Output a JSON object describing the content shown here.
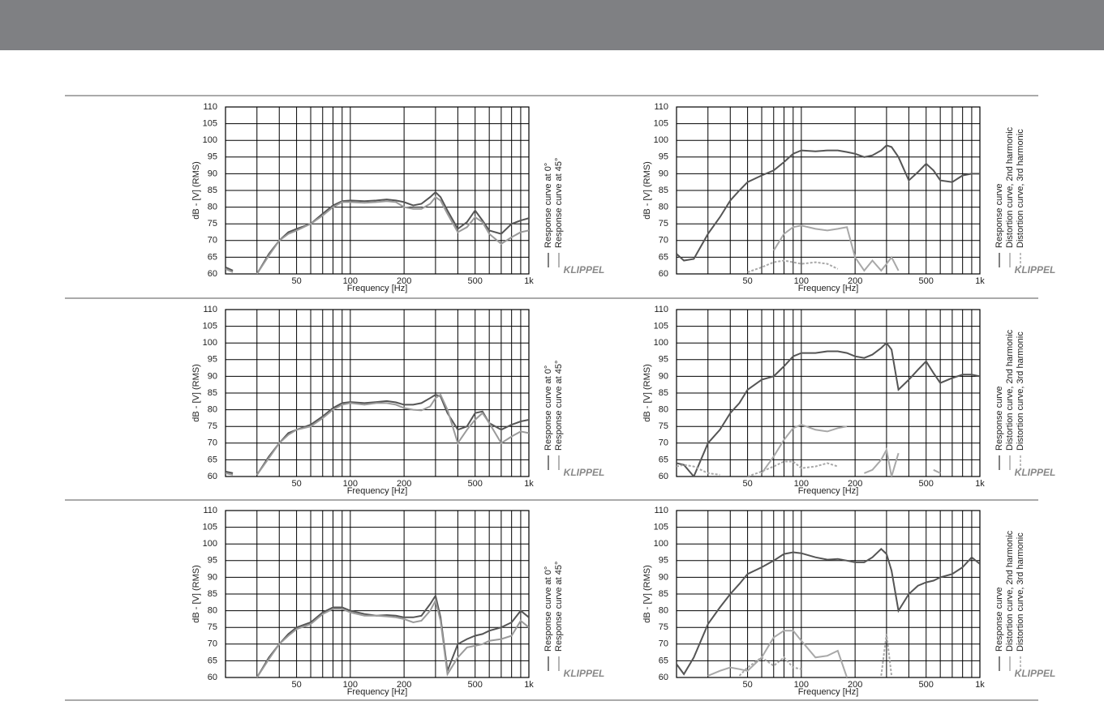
{
  "brand": "KLIPPEL",
  "chart_data": [
    {
      "type": "line",
      "xscale": "log",
      "xlim": [
        20,
        1000
      ],
      "ylim": [
        60,
        110
      ],
      "xlabel": "Frequency [Hz]",
      "ylabel": "dB - [V] (RMS)",
      "xticks": [
        50,
        100,
        200,
        500,
        {
          "value": 1000,
          "label": "1k"
        }
      ],
      "xminor": [
        30,
        40,
        60,
        70,
        80,
        90,
        300,
        400,
        600,
        700,
        800,
        900
      ],
      "yticks": [
        60,
        65,
        70,
        75,
        80,
        85,
        90,
        95,
        100,
        105,
        110
      ],
      "grid": true,
      "x": [
        20,
        22,
        25,
        30,
        35,
        40,
        45,
        50,
        60,
        70,
        80,
        90,
        100,
        120,
        140,
        160,
        180,
        200,
        225,
        250,
        280,
        300,
        320,
        350,
        400,
        450,
        500,
        550,
        600,
        700,
        800,
        900,
        1000
      ],
      "series": [
        {
          "name": "Response curve at 0°",
          "color": "#555555",
          "values": [
            62,
            61,
            null,
            60,
            66,
            70,
            72.5,
            73.5,
            75,
            78,
            80.5,
            81.8,
            82,
            81.8,
            82,
            82.3,
            82,
            81.5,
            80.5,
            81,
            83,
            84.5,
            83,
            79,
            73.5,
            75.5,
            79,
            76,
            73,
            72,
            75,
            76,
            76.7
          ]
        },
        {
          "name": "Response curve at 45°",
          "color": "#9a9a9a",
          "values": [
            61.5,
            60.5,
            null,
            60,
            65.5,
            70,
            72,
            73,
            75,
            77.5,
            80,
            81.5,
            81.5,
            81.3,
            81.5,
            81.8,
            81.5,
            80,
            79.5,
            79.5,
            81,
            83,
            82,
            78,
            72.5,
            74,
            77,
            75.5,
            72,
            69,
            71,
            72.5,
            73
          ]
        }
      ]
    },
    {
      "type": "line",
      "xscale": "log",
      "xlim": [
        20,
        1000
      ],
      "ylim": [
        60,
        110
      ],
      "xlabel": "Frequency [Hz]",
      "ylabel": "dB - [V] (RMS)",
      "xticks": [
        50,
        100,
        200,
        500,
        {
          "value": 1000,
          "label": "1k"
        }
      ],
      "xminor": [
        30,
        40,
        60,
        70,
        80,
        90,
        300,
        400,
        600,
        700,
        800,
        900
      ],
      "yticks": [
        60,
        65,
        70,
        75,
        80,
        85,
        90,
        95,
        100,
        105,
        110
      ],
      "grid": true,
      "x": [
        20,
        22,
        25,
        30,
        35,
        40,
        45,
        50,
        60,
        70,
        80,
        90,
        100,
        120,
        140,
        160,
        180,
        200,
        225,
        250,
        280,
        300,
        320,
        350,
        400,
        450,
        500,
        550,
        600,
        700,
        800,
        900,
        1000
      ],
      "series": [
        {
          "name": "Response curve",
          "color": "#555555",
          "values": [
            66,
            64,
            64.5,
            72,
            77,
            82,
            85,
            87.5,
            89.5,
            91,
            93.5,
            96,
            97,
            96.7,
            97,
            97,
            96.5,
            96,
            95,
            95.5,
            97,
            98.5,
            98,
            95,
            88,
            90.5,
            93,
            91,
            88,
            87.5,
            89.5,
            90,
            90
          ]
        },
        {
          "name": "Distortion curve, 2nd harmonic",
          "color": "#a8a8a8",
          "values": [
            null,
            null,
            null,
            null,
            null,
            null,
            null,
            null,
            null,
            67,
            72,
            74,
            74.5,
            73.5,
            73,
            73.5,
            74,
            65,
            61,
            64,
            61,
            63,
            65,
            61,
            null,
            null,
            null,
            null,
            null,
            null,
            null,
            null,
            null
          ]
        },
        {
          "name": "Distortion curve, 3rd harmonic",
          "color": "#a8a8a8",
          "dash": true,
          "values": [
            null,
            null,
            null,
            null,
            null,
            null,
            null,
            60.5,
            62,
            63.5,
            64,
            63.5,
            63,
            63.5,
            63,
            61.5,
            null,
            null,
            null,
            null,
            null,
            null,
            null,
            null,
            null,
            null,
            null,
            null,
            null,
            null,
            null,
            null,
            null
          ]
        }
      ]
    },
    {
      "type": "line",
      "xscale": "log",
      "xlim": [
        20,
        1000
      ],
      "ylim": [
        60,
        110
      ],
      "xlabel": "Frequency [Hz]",
      "ylabel": "dB - [V] (RMS)",
      "xticks": [
        50,
        100,
        200,
        500,
        {
          "value": 1000,
          "label": "1k"
        }
      ],
      "xminor": [
        30,
        40,
        60,
        70,
        80,
        90,
        300,
        400,
        600,
        700,
        800,
        900
      ],
      "yticks": [
        60,
        65,
        70,
        75,
        80,
        85,
        90,
        95,
        100,
        105,
        110
      ],
      "grid": true,
      "x": [
        20,
        22,
        25,
        30,
        35,
        40,
        45,
        50,
        60,
        70,
        80,
        90,
        100,
        120,
        140,
        160,
        180,
        200,
        225,
        250,
        280,
        300,
        320,
        350,
        400,
        450,
        500,
        550,
        600,
        700,
        800,
        900,
        1000
      ],
      "series": [
        {
          "name": "Response curve at 0°",
          "color": "#555555",
          "values": [
            61.5,
            61,
            null,
            60.5,
            66,
            70,
            73,
            74,
            75.5,
            78,
            80.5,
            82,
            82.3,
            82,
            82.3,
            82.6,
            82.2,
            81.5,
            81.5,
            82,
            83.5,
            84.5,
            84,
            79,
            74,
            75,
            79,
            79.5,
            76,
            74,
            75.5,
            76.5,
            77
          ]
        },
        {
          "name": "Response curve at 45°",
          "color": "#9a9a9a",
          "values": [
            61,
            60.5,
            null,
            60.5,
            65.5,
            70,
            72.5,
            74,
            75,
            77.5,
            80,
            81.5,
            82,
            81.5,
            82,
            82,
            81.5,
            80.5,
            80,
            79.8,
            81,
            83.5,
            84.5,
            80,
            70,
            74,
            77,
            79,
            76,
            70,
            72,
            73.5,
            73
          ]
        }
      ]
    },
    {
      "type": "line",
      "xscale": "log",
      "xlim": [
        20,
        1000
      ],
      "ylim": [
        60,
        110
      ],
      "xlabel": "Frequency [Hz]",
      "ylabel": "dB - [V] (RMS)",
      "xticks": [
        50,
        100,
        200,
        500,
        {
          "value": 1000,
          "label": "1k"
        }
      ],
      "xminor": [
        30,
        40,
        60,
        70,
        80,
        90,
        300,
        400,
        600,
        700,
        800,
        900
      ],
      "yticks": [
        60,
        65,
        70,
        75,
        80,
        85,
        90,
        95,
        100,
        105,
        110
      ],
      "grid": true,
      "x": [
        20,
        22,
        25,
        30,
        35,
        40,
        45,
        50,
        60,
        70,
        80,
        90,
        100,
        120,
        140,
        160,
        180,
        200,
        225,
        250,
        280,
        300,
        320,
        350,
        400,
        450,
        500,
        550,
        600,
        700,
        800,
        900,
        1000
      ],
      "series": [
        {
          "name": "Response curve",
          "color": "#555555",
          "values": [
            64,
            63.5,
            60,
            70,
            74,
            79,
            82,
            86,
            89,
            90,
            93,
            96,
            97,
            97,
            97.5,
            97.5,
            97,
            96,
            95.5,
            96.5,
            98.5,
            100,
            98,
            86,
            89,
            92,
            94.5,
            91,
            88,
            89.5,
            90.5,
            90.5,
            90
          ]
        },
        {
          "name": "Distortion curve, 2nd harmonic",
          "color": "#a8a8a8",
          "values": [
            null,
            null,
            null,
            null,
            null,
            null,
            null,
            null,
            61,
            66,
            71,
            74.5,
            75.5,
            74,
            73.5,
            74.5,
            75,
            null,
            61,
            62,
            65,
            68,
            60,
            67,
            null,
            null,
            null,
            62,
            61,
            null,
            null,
            null,
            null
          ]
        },
        {
          "name": "Distortion curve, 3rd harmonic",
          "color": "#a8a8a8",
          "dash": true,
          "values": [
            63,
            63.5,
            63,
            61,
            60.5,
            null,
            null,
            60,
            61.5,
            63,
            64.5,
            64.5,
            62.5,
            63,
            64,
            63,
            null,
            null,
            null,
            null,
            null,
            null,
            null,
            null,
            null,
            null,
            null,
            null,
            null,
            null,
            null,
            null,
            null
          ]
        }
      ]
    },
    {
      "type": "line",
      "xscale": "log",
      "xlim": [
        20,
        1000
      ],
      "ylim": [
        60,
        110
      ],
      "xlabel": "Frequency [Hz]",
      "ylabel": "dB - [V] (RMS)",
      "xticks": [
        50,
        100,
        200,
        500,
        {
          "value": 1000,
          "label": "1k"
        }
      ],
      "xminor": [
        30,
        40,
        60,
        70,
        80,
        90,
        300,
        400,
        600,
        700,
        800,
        900
      ],
      "yticks": [
        60,
        65,
        70,
        75,
        80,
        85,
        90,
        95,
        100,
        105,
        110
      ],
      "grid": true,
      "x": [
        20,
        22,
        25,
        30,
        35,
        40,
        45,
        50,
        60,
        70,
        80,
        90,
        100,
        120,
        140,
        160,
        180,
        200,
        225,
        250,
        280,
        300,
        320,
        350,
        400,
        450,
        500,
        550,
        600,
        700,
        800,
        900,
        1000
      ],
      "series": [
        {
          "name": "Response curve at 0°",
          "color": "#555555",
          "values": [
            null,
            null,
            null,
            60,
            66,
            70,
            73,
            75,
            76.5,
            79.5,
            81,
            81,
            80,
            79,
            78.5,
            78.7,
            78.5,
            78,
            78,
            78.5,
            82,
            84.5,
            78,
            62,
            70,
            71.5,
            72.5,
            73,
            74,
            75,
            76.5,
            80,
            78
          ]
        },
        {
          "name": "Response curve at 45°",
          "color": "#9a9a9a",
          "values": [
            null,
            null,
            null,
            60,
            65.5,
            70,
            72.5,
            74.5,
            76,
            79,
            80.5,
            80.5,
            79.5,
            78.5,
            78.5,
            78.3,
            78,
            77.5,
            76.5,
            77,
            80,
            83,
            77,
            61,
            66,
            69,
            69.5,
            70,
            71,
            71.5,
            72.5,
            77,
            75
          ]
        }
      ]
    },
    {
      "type": "line",
      "xscale": "log",
      "xlim": [
        20,
        1000
      ],
      "ylim": [
        60,
        110
      ],
      "xlabel": "Frequency [Hz]",
      "ylabel": "dB - [V] (RMS)",
      "xticks": [
        50,
        100,
        200,
        500,
        {
          "value": 1000,
          "label": "1k"
        }
      ],
      "xminor": [
        30,
        40,
        60,
        70,
        80,
        90,
        300,
        400,
        600,
        700,
        800,
        900
      ],
      "yticks": [
        60,
        65,
        70,
        75,
        80,
        85,
        90,
        95,
        100,
        105,
        110
      ],
      "grid": true,
      "x": [
        20,
        22,
        25,
        30,
        35,
        40,
        45,
        50,
        60,
        70,
        80,
        90,
        100,
        120,
        140,
        160,
        180,
        200,
        225,
        250,
        280,
        300,
        320,
        350,
        400,
        450,
        500,
        550,
        600,
        700,
        800,
        900,
        1000
      ],
      "series": [
        {
          "name": "Response curve",
          "color": "#555555",
          "values": [
            64,
            61,
            66,
            76,
            81,
            85,
            88,
            91,
            93,
            95,
            97,
            97.5,
            97.2,
            96,
            95.3,
            95.5,
            95,
            94.5,
            94.5,
            96,
            98.5,
            97,
            92,
            80,
            85,
            87.5,
            88.5,
            89,
            90,
            91,
            93,
            96,
            94
          ]
        },
        {
          "name": "Distortion curve, 2nd harmonic",
          "color": "#a8a8a8",
          "values": [
            null,
            null,
            null,
            60.5,
            62,
            63,
            62.5,
            62,
            66,
            72,
            74,
            74,
            71,
            66,
            66.5,
            68,
            60,
            null,
            null,
            null,
            null,
            null,
            null,
            null,
            null,
            null,
            null,
            null,
            null,
            null,
            null,
            null,
            null
          ]
        },
        {
          "name": "Distortion curve, 3rd harmonic",
          "color": "#a8a8a8",
          "dash": true,
          "values": [
            null,
            null,
            null,
            null,
            null,
            null,
            60.5,
            63,
            66,
            63.5,
            66,
            63,
            62.5,
            null,
            null,
            null,
            null,
            null,
            null,
            null,
            60.5,
            73,
            60.5,
            null,
            null,
            null,
            null,
            null,
            null,
            null,
            null,
            null,
            null
          ]
        }
      ]
    }
  ]
}
